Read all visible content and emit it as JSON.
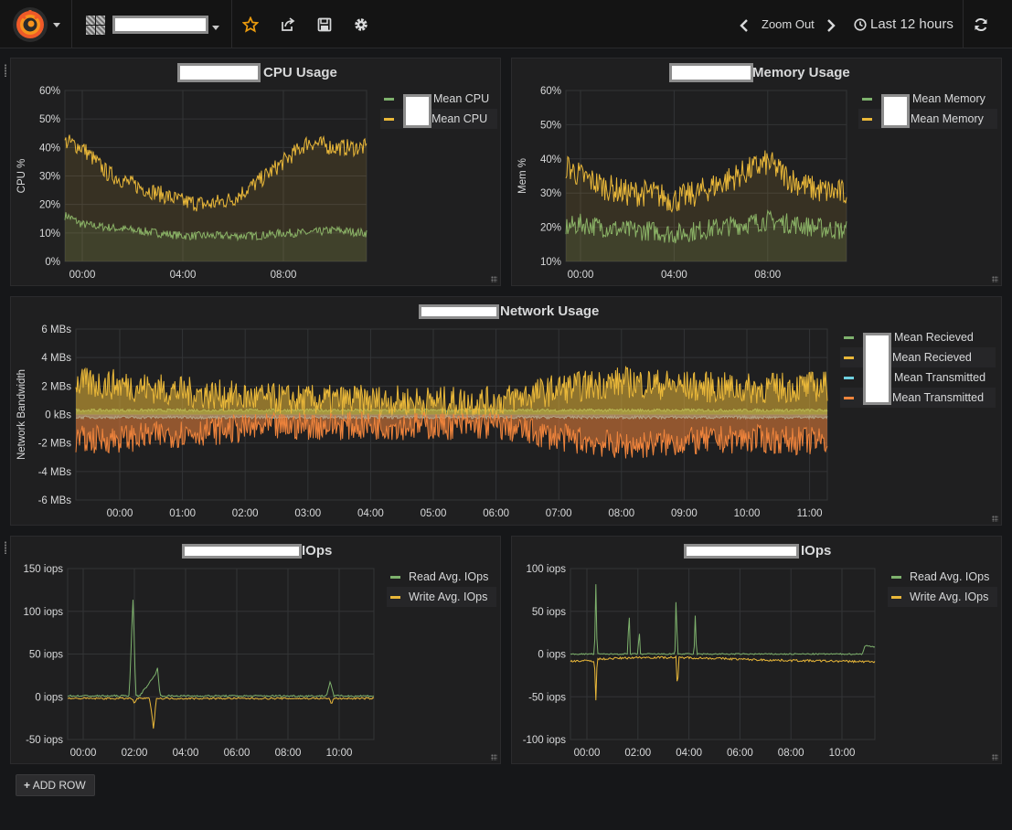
{
  "nav": {
    "zoom_out": "Zoom Out",
    "time_range": "Last 12 hours"
  },
  "colors": {
    "green": "#7eb26d",
    "yellow": "#eab839",
    "cyan": "#6ed0e0",
    "orange": "#ef843c",
    "grid": "#333436"
  },
  "panels": {
    "cpu": {
      "title": "CPU Usage",
      "legend": [
        "Mean CPU",
        "Mean CPU"
      ],
      "chart_data": {
        "type": "line",
        "title": "CPU Usage",
        "ylabel": "CPU %",
        "ylim": [
          0,
          60
        ],
        "yticks": [
          "60%",
          "50%",
          "40%",
          "30%",
          "20%",
          "10%",
          "0%"
        ],
        "xticks": [
          "00:00",
          "04:00",
          "08:00"
        ],
        "series": [
          {
            "name": "Mean CPU",
            "color": "#7eb26d",
            "x": [
              -0.6,
              0,
              1,
              2,
              3,
              4,
              5,
              6,
              7,
              8,
              9,
              10,
              11.2
            ],
            "y": [
              16,
              13,
              12,
              11,
              10,
              9,
              9,
              9,
              9,
              10,
              10,
              11,
              10
            ]
          },
          {
            "name": "Mean CPU",
            "color": "#eab839",
            "x": [
              -0.6,
              0,
              1,
              2,
              3,
              4,
              5,
              6,
              7,
              8,
              9,
              10,
              11.2
            ],
            "y": [
              42,
              40,
              31,
              27,
              24,
              21,
              20,
              22,
              28,
              35,
              42,
              40,
              40
            ]
          }
        ]
      }
    },
    "memory": {
      "title": "Memory Usage",
      "legend": [
        "Mean Memory",
        "Mean Memory"
      ],
      "chart_data": {
        "type": "line",
        "title": "Memory Usage",
        "ylabel": "Mem %",
        "ylim": [
          10,
          60
        ],
        "yticks": [
          "60%",
          "50%",
          "40%",
          "30%",
          "20%",
          "10%"
        ],
        "xticks": [
          "00:00",
          "04:00",
          "08:00"
        ],
        "series": [
          {
            "name": "Mean Memory",
            "color": "#7eb26d",
            "x": [
              -0.6,
              0,
              1,
              2,
              3,
              4,
              5,
              6,
              7,
              8,
              9,
              10,
              11.2
            ],
            "y": [
              20,
              21,
              20,
              19,
              19,
              18,
              19,
              20,
              21,
              22,
              21,
              20,
              19
            ]
          },
          {
            "name": "Mean Memory",
            "color": "#eab839",
            "x": [
              -0.6,
              0,
              1,
              2,
              3,
              4,
              5,
              6,
              7,
              8,
              9,
              10,
              11.2
            ],
            "y": [
              38,
              35,
              32,
              30,
              30,
              28,
              30,
              33,
              36,
              39,
              34,
              31,
              30
            ]
          }
        ]
      }
    },
    "network": {
      "title": "Network Usage",
      "legend": [
        "Mean Recieved",
        "Mean Recieved",
        "Mean Transmitted",
        "Mean Transmitted"
      ],
      "chart_data": {
        "type": "area",
        "title": "Network Usage",
        "ylabel": "Network Bandwidth",
        "ylim": [
          -6,
          6
        ],
        "yticks": [
          "6 MBs",
          "4 MBs",
          "2 MBs",
          "0 kBs",
          "-2 MBs",
          "-4 MBs",
          "-6 MBs"
        ],
        "xticks": [
          "00:00",
          "01:00",
          "02:00",
          "03:00",
          "04:00",
          "05:00",
          "06:00",
          "07:00",
          "08:00",
          "09:00",
          "10:00",
          "11:00"
        ],
        "series": [
          {
            "name": "Mean Recieved",
            "color": "#7eb26d",
            "x": [
              -0.7,
              0,
              1,
              2,
              3,
              4,
              5,
              6,
              7,
              8,
              9,
              10,
              11.3
            ],
            "y": [
              0.3,
              0.3,
              0.3,
              0.3,
              0.3,
              0.3,
              0.3,
              0.3,
              0.3,
              0.3,
              0.3,
              0.3,
              0.3
            ]
          },
          {
            "name": "Mean Recieved",
            "color": "#eab839",
            "x": [
              -0.7,
              0,
              1,
              2,
              3,
              4,
              5,
              6,
              7,
              8,
              9,
              10,
              11.3
            ],
            "y": [
              2.2,
              2.1,
              1.6,
              1.2,
              1.0,
              1.0,
              0.9,
              0.9,
              1.8,
              2.3,
              2.0,
              1.8,
              2.0
            ]
          },
          {
            "name": "Mean Transmitted",
            "color": "#6ed0e0",
            "x": [
              -0.7,
              0,
              1,
              2,
              3,
              4,
              5,
              6,
              7,
              8,
              9,
              10,
              11.3
            ],
            "y": [
              -0.2,
              -0.2,
              -0.2,
              -0.2,
              -0.2,
              -0.2,
              -0.2,
              -0.2,
              -0.2,
              -0.2,
              -0.2,
              -0.2,
              -0.2
            ]
          },
          {
            "name": "Mean Transmitted",
            "color": "#ef843c",
            "x": [
              -0.7,
              0,
              1,
              2,
              3,
              4,
              5,
              6,
              7,
              8,
              9,
              10,
              11.3
            ],
            "y": [
              -1.8,
              -1.7,
              -1.3,
              -1.0,
              -0.8,
              -0.8,
              -0.8,
              -0.8,
              -1.6,
              -2.2,
              -1.9,
              -1.7,
              -1.9
            ]
          }
        ]
      }
    },
    "iops1": {
      "title": "IOps",
      "legend": [
        "Read Avg. IOps",
        "Write Avg. IOps"
      ],
      "chart_data": {
        "type": "line",
        "title": "IOps",
        "ylim": [
          -50,
          150
        ],
        "yticks": [
          "150 iops",
          "100 iops",
          "50 iops",
          "0 iops",
          "-50 iops"
        ],
        "xticks": [
          "00:00",
          "02:00",
          "04:00",
          "06:00",
          "08:00",
          "10:00"
        ],
        "series": [
          {
            "name": "Read Avg. IOps",
            "color": "#7eb26d",
            "x": [
              -0.6,
              0,
              1.8,
              1.95,
              2.05,
              2.2,
              2.8,
              2.9,
              3.0,
              3.1,
              5,
              7,
              9.5,
              9.65,
              9.8,
              11.3
            ],
            "y": [
              1,
              1,
              1,
              118,
              1,
              1,
              25,
              35,
              1,
              1,
              1,
              1,
              1,
              18,
              1,
              1
            ]
          },
          {
            "name": "Write Avg. IOps",
            "color": "#eab839",
            "x": [
              -0.6,
              0,
              1.9,
              2.0,
              2.1,
              2.6,
              2.75,
              2.85,
              3.0,
              5,
              7,
              9.6,
              9.7,
              9.8,
              11.3
            ],
            "y": [
              -2,
              -2,
              -2,
              -8,
              -2,
              -2,
              -38,
              -2,
              -2,
              -2,
              -2,
              -2,
              -8,
              -2,
              -2
            ]
          }
        ]
      }
    },
    "iops2": {
      "title": "IOps",
      "legend": [
        "Read Avg. IOps",
        "Write Avg. IOps"
      ],
      "chart_data": {
        "type": "line",
        "title": "IOps",
        "ylim": [
          -100,
          100
        ],
        "yticks": [
          "100 iops",
          "50 iops",
          "0 iops",
          "-50 iops",
          "-100 iops"
        ],
        "xticks": [
          "00:00",
          "02:00",
          "04:00",
          "06:00",
          "08:00",
          "10:00"
        ],
        "series": [
          {
            "name": "Read Avg. IOps",
            "color": "#7eb26d",
            "x": [
              -0.6,
              0,
              0.3,
              0.35,
              0.4,
              1.6,
              1.65,
              1.7,
              2.0,
              2.05,
              2.1,
              3.45,
              3.5,
              3.55,
              4.2,
              4.25,
              4.3,
              10.8,
              10.9,
              11.3
            ],
            "y": [
              0,
              0,
              0,
              83,
              0,
              0,
              56,
              0,
              0,
              30,
              0,
              0,
              72,
              0,
              0,
              46,
              0,
              0,
              10,
              8
            ]
          },
          {
            "name": "Write Avg. IOps",
            "color": "#eab839",
            "x": [
              -0.6,
              0,
              0.3,
              0.35,
              0.4,
              2,
              3.5,
              3.55,
              3.6,
              5,
              7,
              9,
              11.3
            ],
            "y": [
              -8,
              -8,
              -8,
              -55,
              -6,
              -4,
              -4,
              -48,
              -4,
              -5,
              -7,
              -8,
              -9
            ]
          }
        ]
      }
    }
  },
  "add_row": {
    "label": "ADD ROW"
  }
}
